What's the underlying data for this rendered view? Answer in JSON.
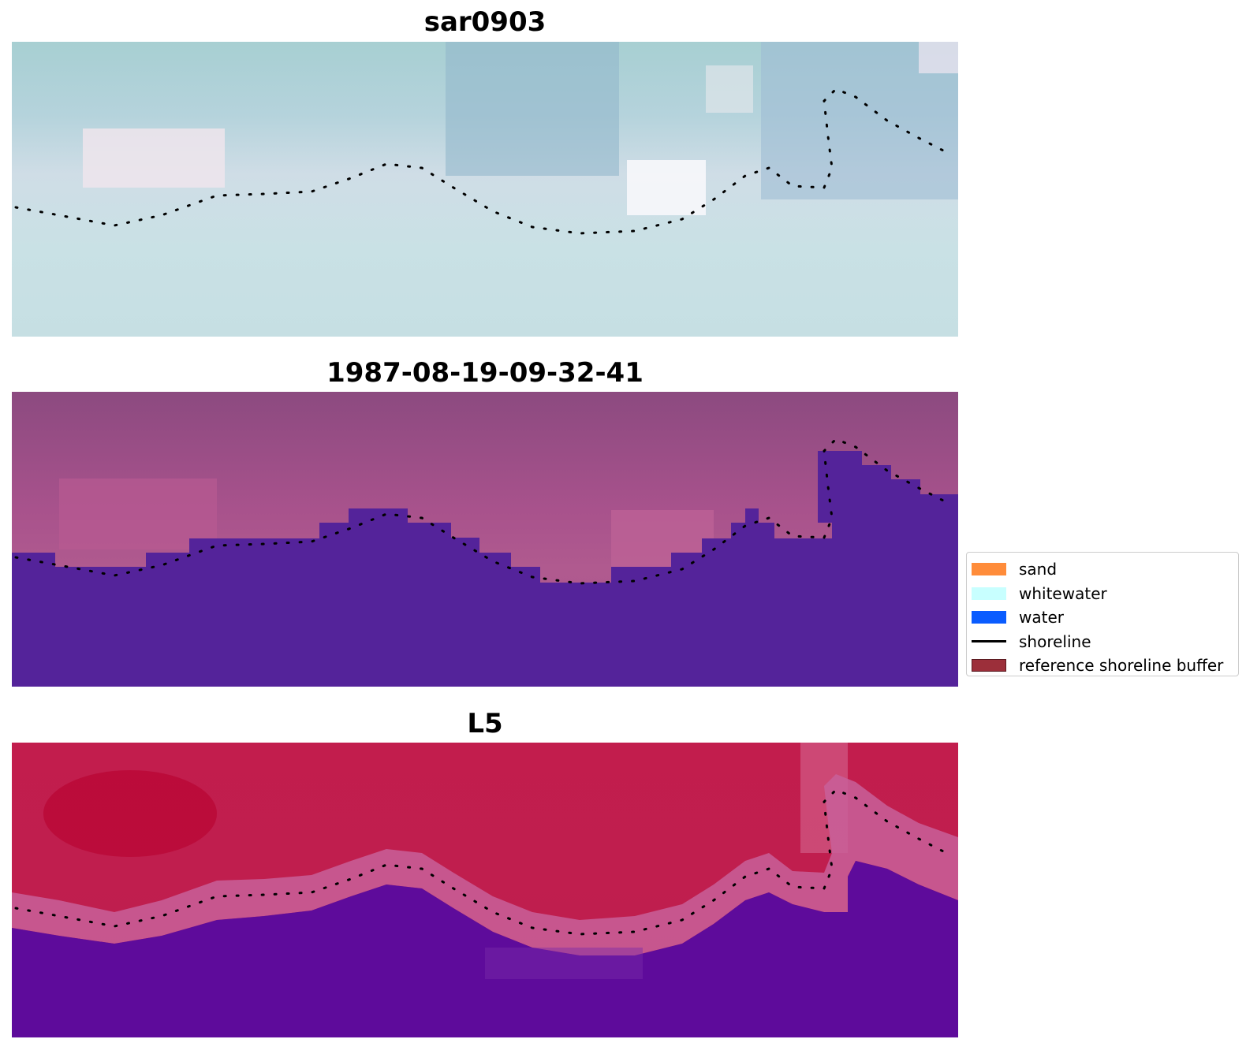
{
  "panels": [
    {
      "title": "sar0903"
    },
    {
      "title": "1987-08-19-09-32-41"
    },
    {
      "title": "L5"
    }
  ],
  "legend": {
    "items": [
      {
        "label": "sand",
        "color": "#ff8c3a",
        "kind": "patch"
      },
      {
        "label": "whitewater",
        "color": "#c8ffff",
        "kind": "patch"
      },
      {
        "label": "water",
        "color": "#0a5cff",
        "kind": "patch"
      },
      {
        "label": "shoreline",
        "color": "#000000",
        "kind": "line"
      },
      {
        "label": "reference shoreline buffer",
        "color": "#9c2f3a",
        "kind": "patch"
      }
    ]
  },
  "colors": {
    "sar_bright": "#cfe3e8",
    "sar_blue": "#98bccc",
    "classified_land": "#9a4f8a",
    "classified_water": "#54239a",
    "l5_land": "#c01f4e",
    "l5_water": "#5a0a98"
  }
}
